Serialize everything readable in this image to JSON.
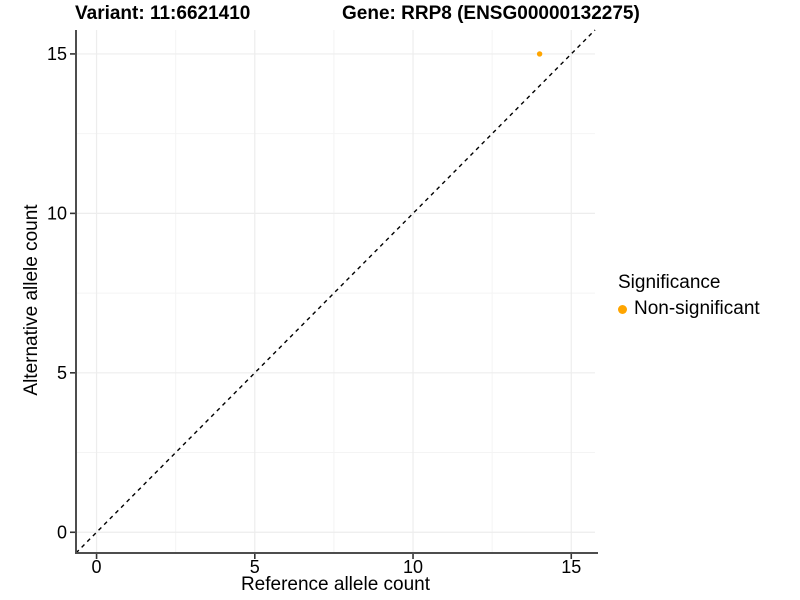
{
  "header": {
    "variant_title": "Variant: 11:6621410",
    "gene_title": "Gene: RRP8 (ENSG00000132275)"
  },
  "chart_data": {
    "type": "scatter",
    "title": "Variant: 11:6621410   Gene: RRP8 (ENSG00000132275)",
    "xlabel": "Reference allele count",
    "ylabel": "Alternative allele count",
    "xlim": [
      -0.65,
      15.75
    ],
    "ylim": [
      -0.65,
      15.75
    ],
    "x_ticks": [
      0,
      5,
      10,
      15
    ],
    "y_ticks": [
      0,
      5,
      10,
      15
    ],
    "x_minor_ticks": [
      2.5,
      7.5,
      12.5
    ],
    "y_minor_ticks": [
      2.5,
      7.5,
      12.5
    ],
    "grid": true,
    "series": [
      {
        "name": "Non-significant",
        "color": "#FFA500",
        "points": [
          {
            "x": 14,
            "y": 15
          }
        ]
      }
    ],
    "reference_line": {
      "type": "identity",
      "style": "dashed",
      "color": "#000000"
    },
    "legend": {
      "title": "Significance",
      "position": "right",
      "items": [
        {
          "label": "Non-significant",
          "color": "#FFA500"
        }
      ]
    }
  },
  "colors": {
    "background": "#FFFFFF",
    "axis_line": "#4D4D4D",
    "tick_mark": "#333333",
    "grid_major": "#EDEDED",
    "grid_minor": "#F4F4F4",
    "text": "#000000"
  }
}
